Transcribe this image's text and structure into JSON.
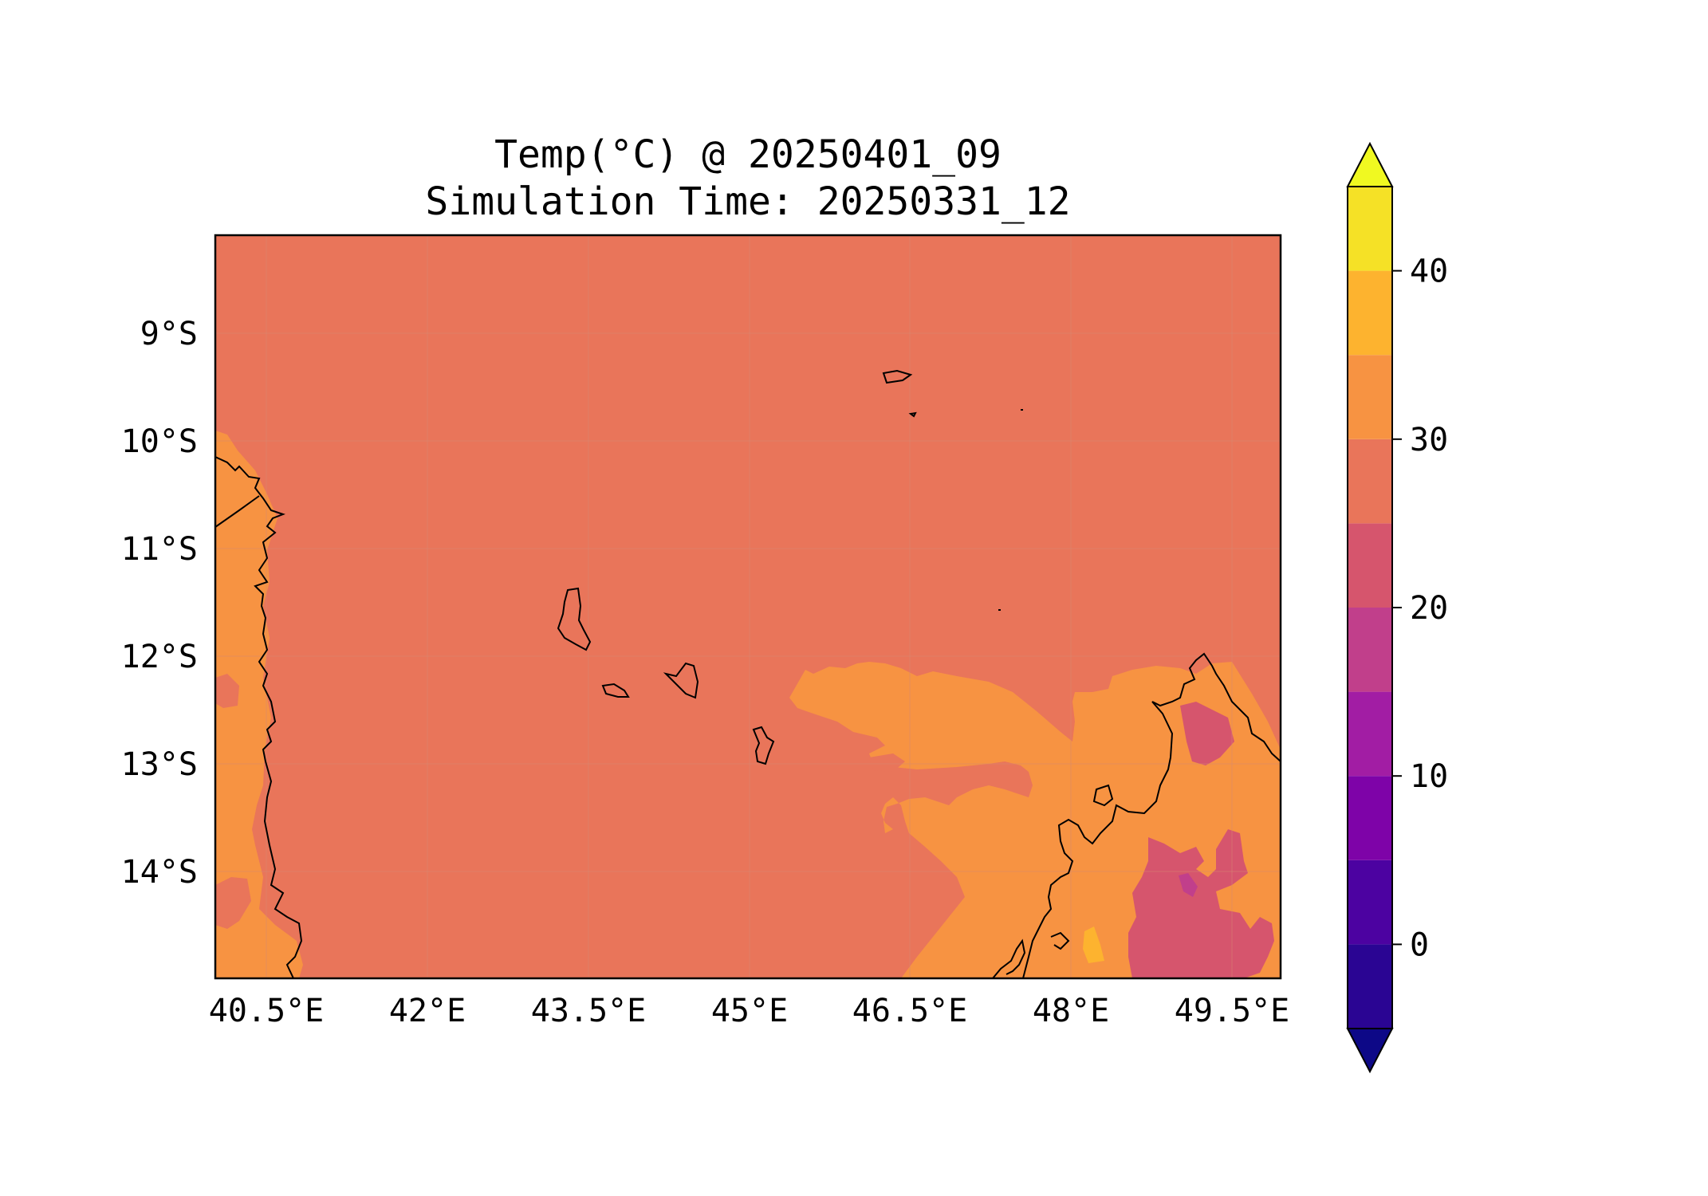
{
  "title": {
    "line1": "Temp(°C) @ 20250401_09",
    "line2": "Simulation Time: 20250331_12"
  },
  "map": {
    "lon_range": [
      40.2,
      50.1
    ],
    "lat_range": [
      -15.0,
      -8.1
    ],
    "x_ticks": [
      {
        "value": 40.5,
        "label": "40.5°E"
      },
      {
        "value": 42.0,
        "label": "42°E"
      },
      {
        "value": 43.5,
        "label": "43.5°E"
      },
      {
        "value": 45.0,
        "label": "45°E"
      },
      {
        "value": 46.5,
        "label": "46.5°E"
      },
      {
        "value": 48.0,
        "label": "48°E"
      },
      {
        "value": 49.5,
        "label": "49.5°E"
      }
    ],
    "y_ticks": [
      {
        "value": -9,
        "label": "9°S"
      },
      {
        "value": -10,
        "label": "10°S"
      },
      {
        "value": -11,
        "label": "11°S"
      },
      {
        "value": -12,
        "label": "12°S"
      },
      {
        "value": -13,
        "label": "13°S"
      },
      {
        "value": -14,
        "label": "14°S"
      }
    ],
    "gridlines": true,
    "background_band_color": "#e9755a"
  },
  "colorbar": {
    "label_ticks": [
      {
        "value": 0,
        "label": "0"
      },
      {
        "value": 10,
        "label": "10"
      },
      {
        "value": 20,
        "label": "20"
      },
      {
        "value": 30,
        "label": "30"
      },
      {
        "value": 40,
        "label": "40"
      }
    ],
    "range": [
      -5,
      45
    ],
    "extend": "both",
    "under_color": "#0d0887",
    "over_color": "#f0f921",
    "bands": [
      {
        "from": -5,
        "to": 0,
        "color": "#2a0593"
      },
      {
        "from": 0,
        "to": 5,
        "color": "#4c02a1"
      },
      {
        "from": 5,
        "to": 10,
        "color": "#7e03a8"
      },
      {
        "from": 10,
        "to": 15,
        "color": "#a21da4"
      },
      {
        "from": 15,
        "to": 20,
        "color": "#c13f8b"
      },
      {
        "from": 20,
        "to": 25,
        "color": "#d6556d"
      },
      {
        "from": 25,
        "to": 30,
        "color": "#e9755a"
      },
      {
        "from": 30,
        "to": 35,
        "color": "#f79342"
      },
      {
        "from": 35,
        "to": 40,
        "color": "#fdb32f"
      },
      {
        "from": 40,
        "to": 45,
        "color": "#f5e126"
      }
    ]
  }
}
